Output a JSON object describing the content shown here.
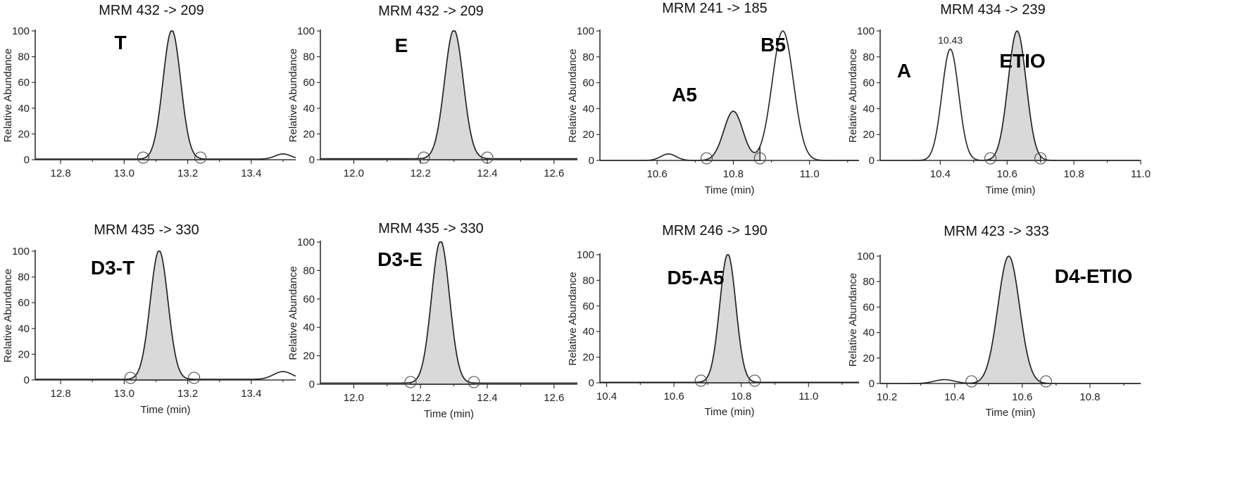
{
  "figure": {
    "y_axis_label": "Relative Abundance",
    "x_axis_label": "Time (min)"
  },
  "chart_data": [
    {
      "type": "line",
      "title": "MRM 432 -> 209",
      "ylabel": "Relative Abundance",
      "xlabel": "",
      "xlim": [
        12.72,
        13.54
      ],
      "ylim": [
        0,
        100
      ],
      "x_ticks": [
        12.8,
        13.0,
        13.2,
        13.4
      ],
      "y_ticks": [
        0,
        20,
        40,
        60,
        80,
        100
      ],
      "peaks": [
        {
          "name": "T",
          "rt": 13.15,
          "height": 100,
          "sigma": 0.028,
          "shaded": true,
          "start": 13.06,
          "end": 13.24
        }
      ],
      "minor_peaks": [
        {
          "rt": 13.5,
          "height": 4,
          "sigma": 0.025
        }
      ],
      "baseline": 0.5,
      "retention_time_labels": []
    },
    {
      "type": "line",
      "title": "MRM 432 -> 209",
      "ylabel": "Relative Abundance",
      "xlabel": "",
      "xlim": [
        11.9,
        12.67
      ],
      "ylim": [
        0,
        100
      ],
      "x_ticks": [
        12.0,
        12.2,
        12.4,
        12.6
      ],
      "y_ticks": [
        0,
        20,
        40,
        60,
        80,
        100
      ],
      "peaks": [
        {
          "name": "E",
          "rt": 12.3,
          "height": 100,
          "sigma": 0.028,
          "shaded": true,
          "start": 12.21,
          "end": 12.4
        }
      ],
      "minor_peaks": [],
      "baseline": 0.8,
      "retention_time_labels": []
    },
    {
      "type": "line",
      "title": "MRM 241 -> 185",
      "ylabel": "Relative Abundance",
      "xlabel": "Time (min)",
      "xlim": [
        10.45,
        11.13
      ],
      "ylim": [
        0,
        100
      ],
      "x_ticks": [
        10.6,
        10.8,
        11.0
      ],
      "y_ticks": [
        0,
        20,
        40,
        60,
        80,
        100
      ],
      "peaks": [
        {
          "name": "A5",
          "rt": 10.8,
          "height": 38,
          "sigma": 0.025,
          "shaded": true,
          "start": 10.73,
          "end": 10.87
        },
        {
          "name": "B5",
          "rt": 10.93,
          "height": 100,
          "sigma": 0.028,
          "shaded": false,
          "start": 10.86,
          "end": 11.02
        }
      ],
      "minor_peaks": [
        {
          "rt": 10.63,
          "height": 5,
          "sigma": 0.02
        }
      ],
      "baseline": 0,
      "retention_time_labels": []
    },
    {
      "type": "line",
      "title": "MRM 434 -> 239",
      "ylabel": "Relative Abundance",
      "xlabel": "Time (min)",
      "xlim": [
        10.22,
        11.0
      ],
      "ylim": [
        0,
        100
      ],
      "x_ticks": [
        10.4,
        10.6,
        10.8,
        11.0
      ],
      "y_ticks": [
        0,
        20,
        40,
        60,
        80,
        100
      ],
      "peaks": [
        {
          "name": "A",
          "rt": 10.43,
          "height": 86,
          "sigma": 0.025,
          "shaded": false,
          "start": 10.36,
          "end": 10.51
        },
        {
          "name": "ETIO",
          "rt": 10.63,
          "height": 100,
          "sigma": 0.027,
          "shaded": true,
          "start": 10.55,
          "end": 10.7
        }
      ],
      "minor_peaks": [],
      "baseline": 0,
      "retention_time_labels": [
        "10.43"
      ]
    },
    {
      "type": "line",
      "title": "MRM 435 -> 330",
      "ylabel": "Relative Abundance",
      "xlabel": "Time (min)",
      "xlim": [
        12.72,
        13.54
      ],
      "ylim": [
        0,
        100
      ],
      "x_ticks": [
        12.8,
        13.0,
        13.2,
        13.4
      ],
      "y_ticks": [
        0,
        20,
        40,
        60,
        80,
        100
      ],
      "peaks": [
        {
          "name": "D3-T",
          "rt": 13.11,
          "height": 100,
          "sigma": 0.028,
          "shaded": true,
          "start": 13.02,
          "end": 13.22
        }
      ],
      "minor_peaks": [
        {
          "rt": 13.5,
          "height": 6,
          "sigma": 0.03
        }
      ],
      "baseline": 0.5,
      "retention_time_labels": []
    },
    {
      "type": "line",
      "title": "MRM 435 -> 330",
      "ylabel": "Relative Abundance",
      "xlabel": "Time (min)",
      "xlim": [
        11.9,
        12.67
      ],
      "ylim": [
        0,
        100
      ],
      "x_ticks": [
        12.0,
        12.2,
        12.4,
        12.6
      ],
      "y_ticks": [
        0,
        20,
        40,
        60,
        80,
        100
      ],
      "peaks": [
        {
          "name": "D3-E",
          "rt": 12.26,
          "height": 100,
          "sigma": 0.027,
          "shaded": true,
          "start": 12.17,
          "end": 12.36
        }
      ],
      "minor_peaks": [],
      "baseline": 0.8,
      "retention_time_labels": []
    },
    {
      "type": "line",
      "title": "MRM 246 -> 190",
      "ylabel": "Relative Abundance",
      "xlabel": "Time (min)",
      "xlim": [
        10.38,
        11.15
      ],
      "ylim": [
        0,
        100
      ],
      "x_ticks": [
        10.4,
        10.6,
        10.8,
        11.0
      ],
      "y_ticks": [
        0,
        20,
        40,
        60,
        80,
        100
      ],
      "peaks": [
        {
          "name": "D5-A5",
          "rt": 10.76,
          "height": 100,
          "sigma": 0.024,
          "shaded": true,
          "start": 10.68,
          "end": 10.84
        }
      ],
      "minor_peaks": [],
      "baseline": 0.4,
      "retention_time_labels": []
    },
    {
      "type": "line",
      "title": "MRM 423 -> 333",
      "ylabel": "Relative Abundance",
      "xlabel": "Time (min)",
      "xlim": [
        10.18,
        10.95
      ],
      "ylim": [
        0,
        100
      ],
      "x_ticks": [
        10.2,
        10.4,
        10.6,
        10.8
      ],
      "y_ticks": [
        0,
        20,
        40,
        60,
        80,
        100
      ],
      "peaks": [
        {
          "name": "D4-ETIO",
          "rt": 10.56,
          "height": 100,
          "sigma": 0.032,
          "shaded": true,
          "start": 10.45,
          "end": 10.67
        }
      ],
      "minor_peaks": [
        {
          "rt": 10.37,
          "height": 3,
          "sigma": 0.03
        }
      ],
      "baseline": 0,
      "retention_time_labels": []
    }
  ]
}
